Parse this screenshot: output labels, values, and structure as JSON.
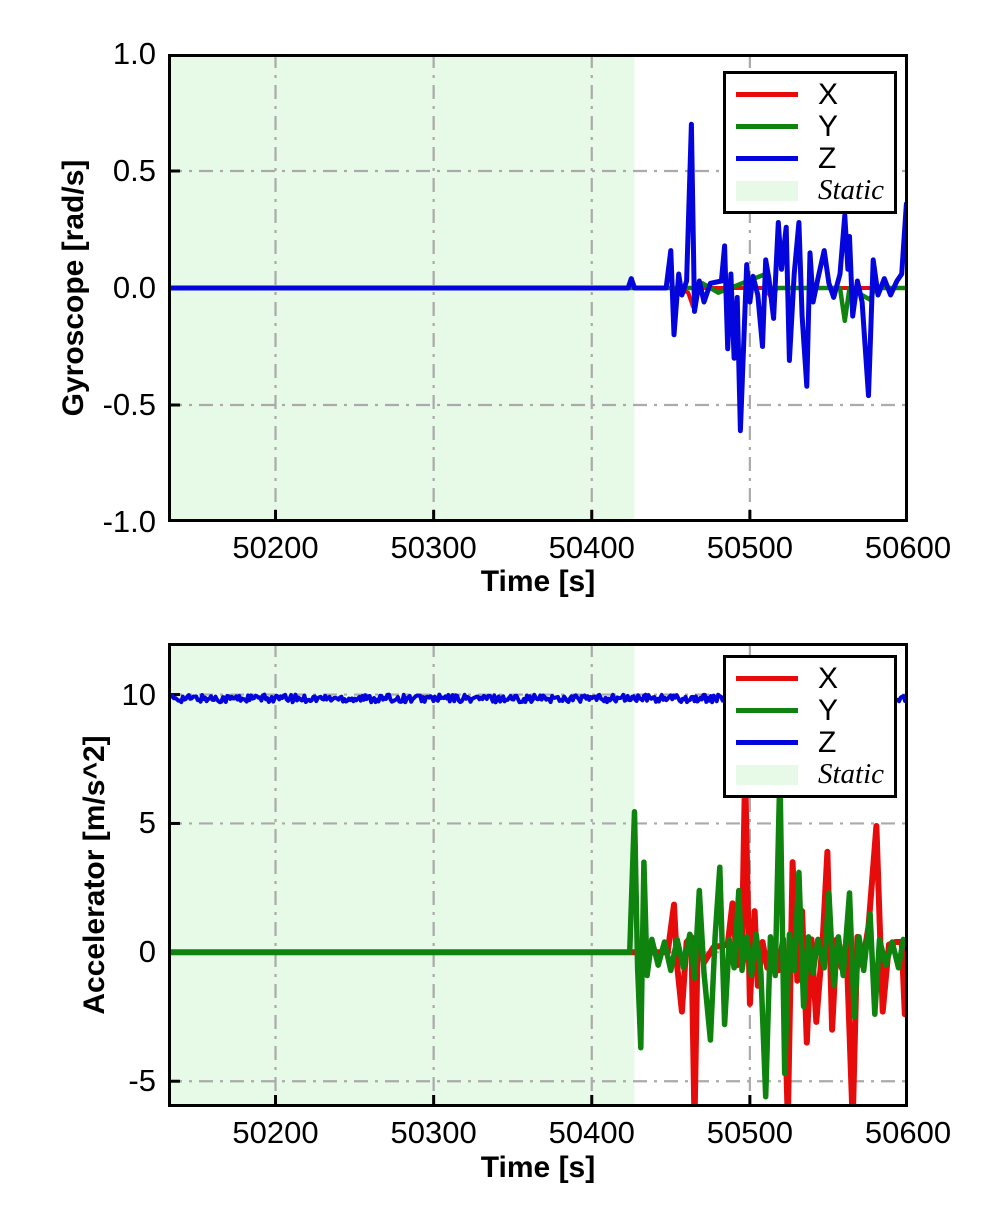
{
  "figure": {
    "background": "#ffffff"
  },
  "colors": {
    "x_line": "#e60c0c",
    "y_line": "#0e830e",
    "z_line": "#0404dd",
    "static_fill": "#e7f9e7",
    "grid": "#aaaaaa",
    "spine": "#000000",
    "text": "#000000"
  },
  "legend": {
    "entries": [
      {
        "label": "X",
        "type": "line",
        "color": "#e60c0c"
      },
      {
        "label": "Y",
        "type": "line",
        "color": "#0e830e"
      },
      {
        "label": "Z",
        "type": "line",
        "color": "#0404dd"
      },
      {
        "label": "Static",
        "type": "patch",
        "color": "#e7f9e7"
      }
    ],
    "position": "upper-right"
  },
  "chart_data": [
    {
      "type": "line",
      "title": "",
      "xlabel": "Time [s]",
      "ylabel": "Gyroscope [rad/s]",
      "xlim": [
        50132,
        50600
      ],
      "ylim": [
        -1.0,
        1.0
      ],
      "xticks": [
        50200,
        50300,
        50400,
        50500,
        50600
      ],
      "xtick_labels": [
        "50200",
        "50300",
        "50400",
        "50500",
        "50600"
      ],
      "yticks": [
        1.0,
        0.5,
        0.0,
        -0.5,
        -1.0
      ],
      "ytick_labels": [
        "1.0",
        "0.5",
        "0.0",
        "-0.5",
        "-1.0"
      ],
      "grid": "dash-dot",
      "legend_position": "upper-right",
      "static_region": {
        "start": 50132,
        "end": 50427,
        "label": "Static"
      },
      "series": [
        {
          "name": "X",
          "color": "#e60c0c",
          "width": 4,
          "points": [
            [
              50132,
              0
            ],
            [
              50455,
              0
            ],
            [
              50461,
              -0.02
            ],
            [
              50464,
              -0.08
            ],
            [
              50468,
              0
            ],
            [
              50510,
              0
            ],
            [
              50514,
              -0.05
            ],
            [
              50517,
              0
            ],
            [
              50600,
              0
            ]
          ]
        },
        {
          "name": "Y",
          "color": "#0e830e",
          "width": 4.5,
          "points": [
            [
              50132,
              0
            ],
            [
              50465,
              0
            ],
            [
              50470,
              0.02
            ],
            [
              50480,
              -0.02
            ],
            [
              50510,
              0.06
            ],
            [
              50513,
              0
            ],
            [
              50557,
              0
            ],
            [
              50560,
              -0.14
            ],
            [
              50563,
              0
            ],
            [
              50576,
              -0.05
            ],
            [
              50579,
              0
            ],
            [
              50600,
              0
            ]
          ]
        },
        {
          "name": "Z",
          "color": "#0404dd",
          "width": 5,
          "points": [
            [
              50132,
              0
            ],
            [
              50423,
              0
            ],
            [
              50425,
              0.04
            ],
            [
              50427,
              0
            ],
            [
              50447,
              0
            ],
            [
              50450,
              0.16
            ],
            [
              50452,
              -0.2
            ],
            [
              50455,
              0.06
            ],
            [
              50457,
              -0.03
            ],
            [
              50460,
              0.03
            ],
            [
              50463,
              0.7
            ],
            [
              50465,
              -0.1
            ],
            [
              50468,
              0.03
            ],
            [
              50471,
              -0.06
            ],
            [
              50475,
              0.02
            ],
            [
              50482,
              0.03
            ],
            [
              50484,
              0.18
            ],
            [
              50486,
              -0.26
            ],
            [
              50488,
              0.06
            ],
            [
              50490,
              -0.3
            ],
            [
              50492,
              -0.04
            ],
            [
              50494,
              -0.61
            ],
            [
              50496,
              -0.25
            ],
            [
              50498,
              0.1
            ],
            [
              50500,
              -0.06
            ],
            [
              50502,
              0.05
            ],
            [
              50505,
              -0.03
            ],
            [
              50508,
              -0.25
            ],
            [
              50510,
              0.12
            ],
            [
              50512,
              0.04
            ],
            [
              50515,
              -0.13
            ],
            [
              50518,
              0.28
            ],
            [
              50520,
              0.08
            ],
            [
              50523,
              0.26
            ],
            [
              50525,
              -0.31
            ],
            [
              50528,
              0.06
            ],
            [
              50531,
              0.28
            ],
            [
              50533,
              -0.12
            ],
            [
              50536,
              -0.42
            ],
            [
              50538,
              0.15
            ],
            [
              50540,
              -0.06
            ],
            [
              50543,
              0.04
            ],
            [
              50547,
              0.16
            ],
            [
              50550,
              0.02
            ],
            [
              50553,
              -0.04
            ],
            [
              50557,
              0.06
            ],
            [
              50560,
              0.31
            ],
            [
              50562,
              0.08
            ],
            [
              50563,
              0.22
            ],
            [
              50565,
              -0.12
            ],
            [
              50568,
              0.03
            ],
            [
              50571,
              -0.06
            ],
            [
              50575,
              -0.46
            ],
            [
              50578,
              0.12
            ],
            [
              50581,
              -0.03
            ],
            [
              50585,
              0.04
            ],
            [
              50589,
              -0.03
            ],
            [
              50593,
              0.03
            ],
            [
              50596,
              0.06
            ],
            [
              50599,
              0.36
            ],
            [
              50600,
              0.15
            ]
          ]
        }
      ]
    },
    {
      "type": "line",
      "title": "",
      "xlabel": "Time [s]",
      "ylabel": "Accelerator [m/s^2]",
      "xlim": [
        50132,
        50600
      ],
      "ylim": [
        -6.0,
        12.0
      ],
      "xticks": [
        50200,
        50300,
        50400,
        50500,
        50600
      ],
      "xtick_labels": [
        "50200",
        "50300",
        "50400",
        "50500",
        "50600"
      ],
      "yticks": [
        10,
        5,
        0,
        -5
      ],
      "ytick_labels": [
        "10",
        "5",
        "0",
        "-5"
      ],
      "grid": "dash-dot",
      "legend_position": "upper-right",
      "static_region": {
        "start": 50132,
        "end": 50427,
        "label": "Static"
      },
      "series": [
        {
          "name": "X",
          "color": "#e60c0c",
          "width": 6,
          "points": [
            [
              50132,
              0
            ],
            [
              50448,
              0
            ],
            [
              50452,
              1.85
            ],
            [
              50454,
              -0.5
            ],
            [
              50457,
              -2.3
            ],
            [
              50460,
              0.4
            ],
            [
              50463,
              0.6
            ],
            [
              50465,
              -6.6
            ],
            [
              50467,
              0.5
            ],
            [
              50471,
              -0.4
            ],
            [
              50477,
              0.2
            ],
            [
              50486,
              0.3
            ],
            [
              50489,
              1.9
            ],
            [
              50492,
              -0.5
            ],
            [
              50495,
              0.4
            ],
            [
              50497,
              7.0
            ],
            [
              50500,
              -2.0
            ],
            [
              50503,
              1.6
            ],
            [
              50505,
              -1.3
            ],
            [
              50508,
              0.4
            ],
            [
              50511,
              -0.6
            ],
            [
              50514,
              0.4
            ],
            [
              50518,
              -0.7
            ],
            [
              50521,
              0.5
            ],
            [
              50524,
              -6.6
            ],
            [
              50527,
              3.5
            ],
            [
              50530,
              -1.1
            ],
            [
              50533,
              1.6
            ],
            [
              50536,
              -3.5
            ],
            [
              50539,
              0.5
            ],
            [
              50542,
              -2.7
            ],
            [
              50546,
              0.4
            ],
            [
              50549,
              3.9
            ],
            [
              50552,
              -3.0
            ],
            [
              50555,
              0.5
            ],
            [
              50558,
              -0.6
            ],
            [
              50561,
              0.4
            ],
            [
              50565,
              -6.6
            ],
            [
              50568,
              0.6
            ],
            [
              50571,
              -0.5
            ],
            [
              50575,
              1.0
            ],
            [
              50580,
              4.9
            ],
            [
              50584,
              -2.3
            ],
            [
              50588,
              0.3
            ],
            [
              50592,
              0.4
            ],
            [
              50596,
              0.4
            ],
            [
              50598,
              -2.4
            ],
            [
              50600,
              -2.0
            ]
          ]
        },
        {
          "name": "Y",
          "color": "#0e830e",
          "width": 5.5,
          "points": [
            [
              50132,
              0
            ],
            [
              50424,
              0
            ],
            [
              50427,
              5.45
            ],
            [
              50429,
              -0.6
            ],
            [
              50431,
              -3.7
            ],
            [
              50433,
              3.5
            ],
            [
              50435,
              -0.9
            ],
            [
              50438,
              0.5
            ],
            [
              50442,
              -0.5
            ],
            [
              50446,
              0.4
            ],
            [
              50450,
              -0.7
            ],
            [
              50454,
              0.5
            ],
            [
              50458,
              -0.6
            ],
            [
              50462,
              0.7
            ],
            [
              50465,
              -1.0
            ],
            [
              50468,
              2.4
            ],
            [
              50471,
              -0.8
            ],
            [
              50475,
              -3.4
            ],
            [
              50478,
              0.6
            ],
            [
              50481,
              3.3
            ],
            [
              50484,
              -2.8
            ],
            [
              50487,
              0.5
            ],
            [
              50490,
              -0.6
            ],
            [
              50493,
              2.4
            ],
            [
              50495,
              -0.7
            ],
            [
              50498,
              0.6
            ],
            [
              50501,
              -0.9
            ],
            [
              50504,
              0.7
            ],
            [
              50507,
              -0.8
            ],
            [
              50510,
              -5.6
            ],
            [
              50513,
              0.6
            ],
            [
              50516,
              -0.9
            ],
            [
              50519,
              7.0
            ],
            [
              50522,
              -4.7
            ],
            [
              50525,
              0.7
            ],
            [
              50528,
              -0.7
            ],
            [
              50531,
              3.1
            ],
            [
              50534,
              -2.1
            ],
            [
              50537,
              0.6
            ],
            [
              50540,
              -0.8
            ],
            [
              50543,
              0.5
            ],
            [
              50547,
              -0.6
            ],
            [
              50550,
              2.3
            ],
            [
              50553,
              -1.3
            ],
            [
              50556,
              0.6
            ],
            [
              50559,
              -0.9
            ],
            [
              50563,
              2.3
            ],
            [
              50566,
              -2.5
            ],
            [
              50569,
              0.6
            ],
            [
              50572,
              -0.7
            ],
            [
              50576,
              1.5
            ],
            [
              50579,
              -2.4
            ],
            [
              50582,
              0.5
            ],
            [
              50586,
              -0.5
            ],
            [
              50590,
              0.4
            ],
            [
              50594,
              -0.6
            ],
            [
              50597,
              0.5
            ],
            [
              50600,
              0.3
            ]
          ]
        },
        {
          "name": "Z",
          "color": "#0404dd",
          "width": 4,
          "baseline": 9.85,
          "noise_amp": 0.15,
          "n_points": 500
        }
      ]
    }
  ]
}
